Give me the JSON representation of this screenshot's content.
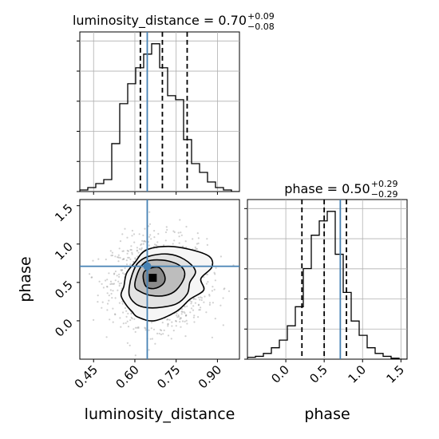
{
  "chart_data": [
    {
      "type": "histogram",
      "panel": "luminosity_distance-marginal",
      "title": {
        "param": "luminosity_distance",
        "value": "0.70",
        "plus": "+0.09",
        "minus": "−0.08"
      },
      "xlim": [
        0.4,
        0.98
      ],
      "grid": true,
      "bin_edges": [
        0.4,
        0.429,
        0.458,
        0.487,
        0.516,
        0.545,
        0.574,
        0.603,
        0.632,
        0.661,
        0.69,
        0.719,
        0.748,
        0.777,
        0.806,
        0.835,
        0.864,
        0.893,
        0.922,
        0.951,
        0.98
      ],
      "counts": [
        2,
        5,
        10,
        15,
        60,
        110,
        135,
        155,
        172,
        185,
        155,
        120,
        115,
        65,
        35,
        24,
        12,
        5,
        2,
        0
      ],
      "quantile_lines": [
        0.62,
        0.7,
        0.79
      ],
      "truth": 0.645,
      "colors": {
        "hist": "#000000",
        "truth": "#4682b4",
        "grid": "#b0b0b0"
      }
    },
    {
      "type": "contour2d",
      "panel": "phase-vs-luminosity_distance",
      "xlabel": "luminosity_distance",
      "ylabel": "phase",
      "xlim": [
        0.4,
        0.98
      ],
      "ylim": [
        -0.5,
        1.58
      ],
      "xticks": [
        "0.45",
        "0.60",
        "0.75",
        "0.90"
      ],
      "xtick_values": [
        0.45,
        0.6,
        0.75,
        0.9
      ],
      "yticks": [
        "0.0",
        "0.5",
        "1.0",
        "1.5"
      ],
      "ytick_values": [
        0.0,
        0.5,
        1.0,
        1.5
      ],
      "truth": {
        "x": 0.645,
        "y": 0.71
      },
      "scatter_center": {
        "x": 0.69,
        "y": 0.5
      },
      "scatter_spread": {
        "x": 0.085,
        "y": 0.28
      },
      "density_peak": {
        "x": 0.665,
        "y": 0.56
      },
      "contours": [
        [
          [
            0.57,
            0.62
          ],
          [
            0.6,
            0.76
          ],
          [
            0.64,
            0.92
          ],
          [
            0.72,
            0.97
          ],
          [
            0.8,
            0.93
          ],
          [
            0.87,
            0.84
          ],
          [
            0.88,
            0.7
          ],
          [
            0.84,
            0.55
          ],
          [
            0.85,
            0.4
          ],
          [
            0.8,
            0.28
          ],
          [
            0.75,
            0.12
          ],
          [
            0.67,
            0.0
          ],
          [
            0.61,
            0.05
          ],
          [
            0.59,
            0.12
          ],
          [
            0.57,
            0.2
          ],
          [
            0.55,
            0.33
          ],
          [
            0.56,
            0.45
          ],
          [
            0.57,
            0.62
          ]
        ],
        [
          [
            0.59,
            0.6
          ],
          [
            0.61,
            0.75
          ],
          [
            0.65,
            0.84
          ],
          [
            0.72,
            0.87
          ],
          [
            0.78,
            0.8
          ],
          [
            0.82,
            0.65
          ],
          [
            0.8,
            0.5
          ],
          [
            0.79,
            0.35
          ],
          [
            0.75,
            0.22
          ],
          [
            0.68,
            0.17
          ],
          [
            0.63,
            0.18
          ],
          [
            0.6,
            0.23
          ],
          [
            0.58,
            0.33
          ],
          [
            0.58,
            0.45
          ],
          [
            0.59,
            0.6
          ]
        ],
        [
          [
            0.61,
            0.62
          ],
          [
            0.63,
            0.74
          ],
          [
            0.66,
            0.79
          ],
          [
            0.72,
            0.78
          ],
          [
            0.77,
            0.7
          ],
          [
            0.78,
            0.57
          ],
          [
            0.75,
            0.4
          ],
          [
            0.71,
            0.33
          ],
          [
            0.66,
            0.33
          ],
          [
            0.62,
            0.38
          ],
          [
            0.6,
            0.45
          ],
          [
            0.61,
            0.62
          ]
        ],
        [
          [
            0.63,
            0.58
          ],
          [
            0.64,
            0.66
          ],
          [
            0.68,
            0.7
          ],
          [
            0.7,
            0.65
          ],
          [
            0.71,
            0.55
          ],
          [
            0.7,
            0.47
          ],
          [
            0.67,
            0.42
          ],
          [
            0.64,
            0.45
          ],
          [
            0.63,
            0.58
          ]
        ]
      ],
      "colors": {
        "contour": "#000000",
        "truth": "#4682b4",
        "scatter": "#9a9a9a"
      }
    },
    {
      "type": "histogram",
      "panel": "phase-marginal",
      "title": {
        "param": "phase",
        "value": "0.50",
        "plus": "+0.29",
        "minus": "−0.29"
      },
      "xlabel": "phase",
      "xlim": [
        -0.5,
        1.58
      ],
      "grid": true,
      "xticks": [
        "0.0",
        "0.5",
        "1.0",
        "1.5"
      ],
      "xtick_values": [
        0.0,
        0.5,
        1.0,
        1.5
      ],
      "bin_edges": [
        -0.5,
        -0.396,
        -0.292,
        -0.188,
        -0.084,
        0.02,
        0.124,
        0.228,
        0.332,
        0.436,
        0.54,
        0.644,
        0.748,
        0.852,
        0.956,
        1.06,
        1.164,
        1.268,
        1.372,
        1.476,
        1.58
      ],
      "counts": [
        2,
        3,
        6,
        12,
        20,
        35,
        55,
        95,
        130,
        145,
        155,
        110,
        70,
        40,
        25,
        12,
        6,
        3,
        1,
        0
      ],
      "quantile_lines": [
        0.21,
        0.5,
        0.79
      ],
      "truth": 0.71,
      "colors": {
        "hist": "#000000",
        "truth": "#4682b4",
        "grid": "#b0b0b0"
      }
    }
  ]
}
